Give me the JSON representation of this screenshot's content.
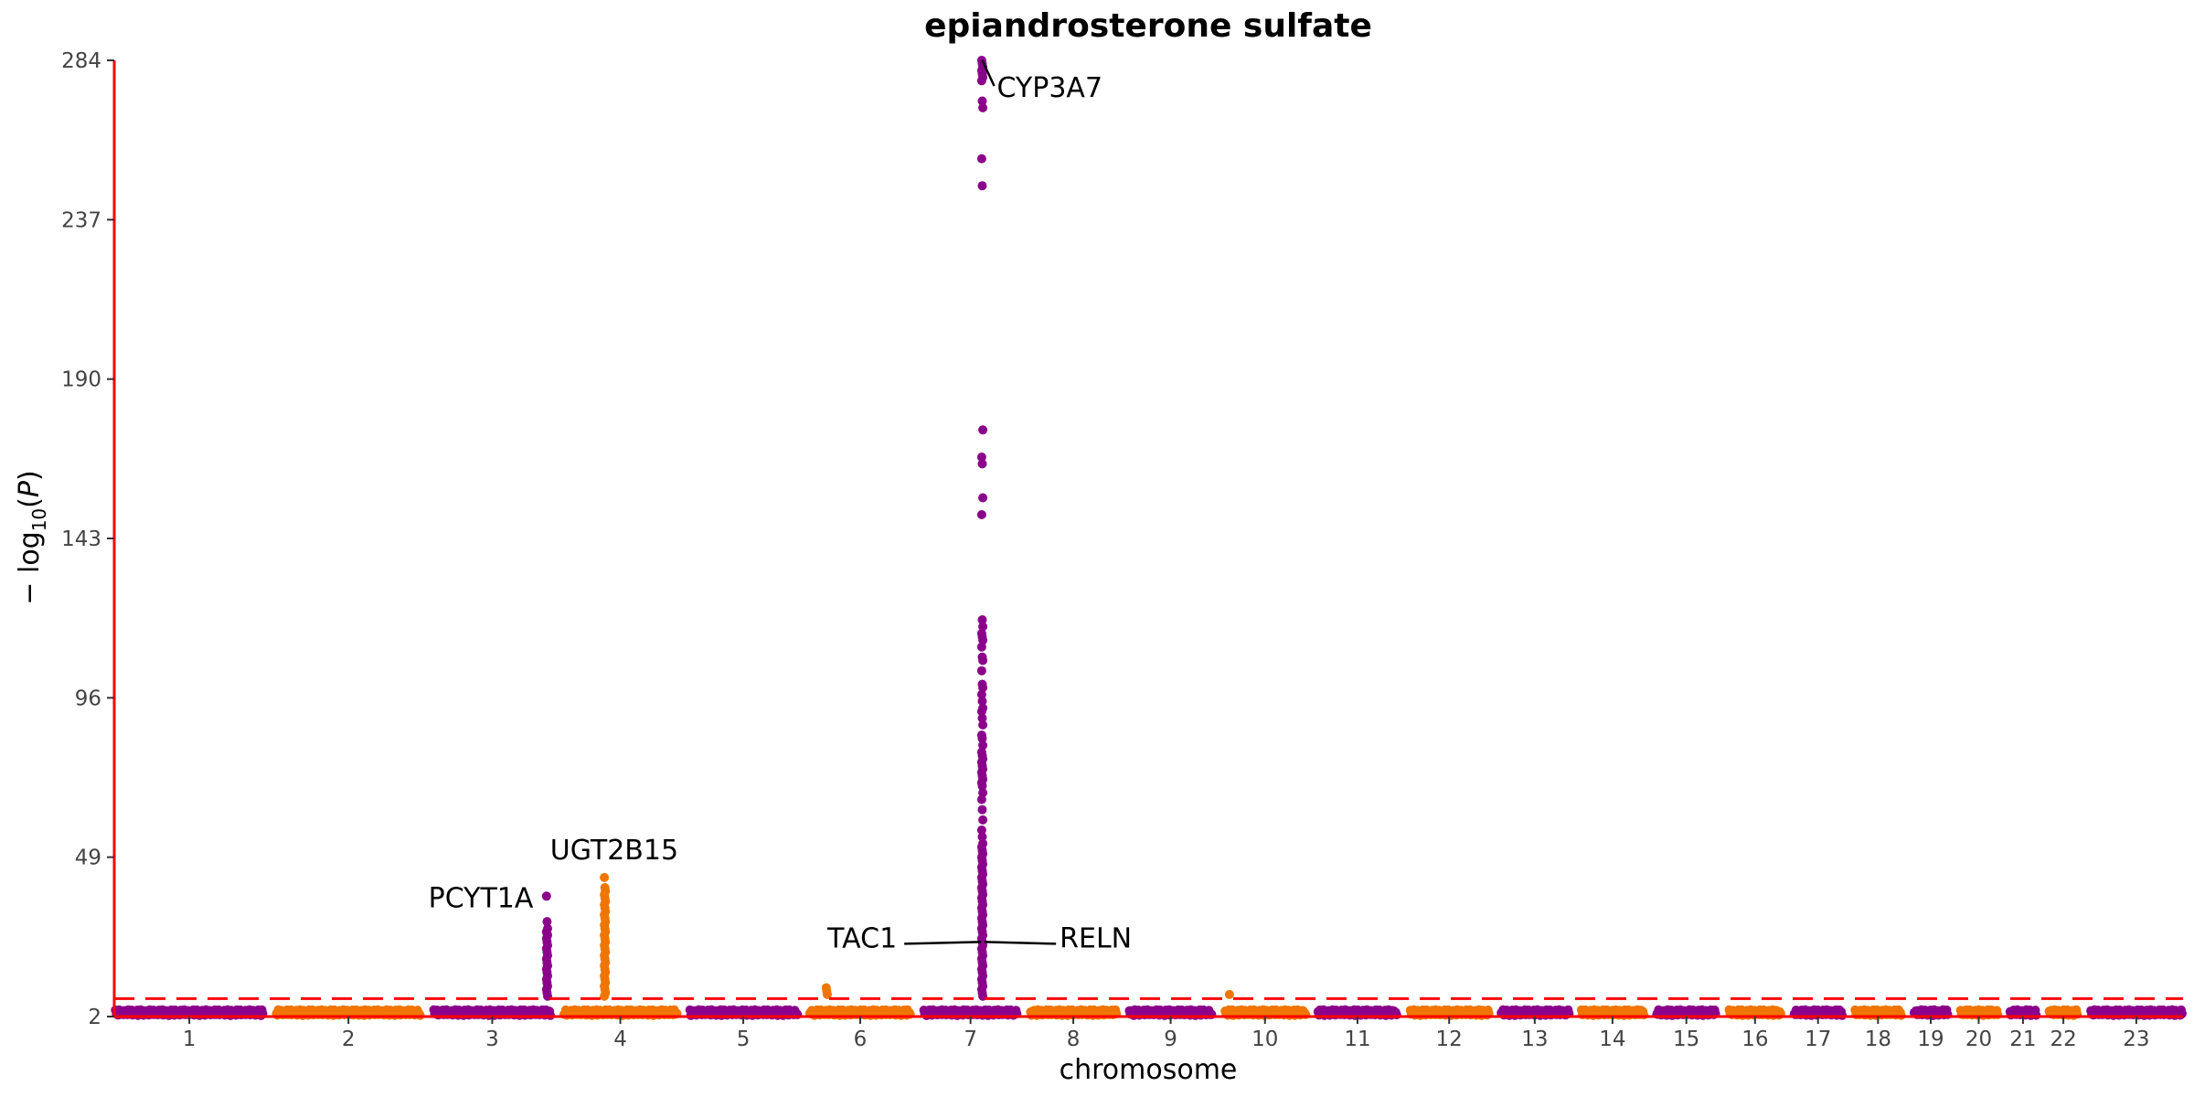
{
  "chart_data": {
    "type": "scatter",
    "title": "epiandrosterone sulfate",
    "xlabel": "chromosome",
    "ylabel": "−log10(P)",
    "y_ticks": [
      2,
      49,
      96,
      143,
      190,
      237,
      284
    ],
    "ylim": [
      2,
      284
    ],
    "significance_threshold": 7.3,
    "colors": {
      "odd": "#8B008B",
      "even": "#EE7600",
      "axis": "#FF0000",
      "threshold": "#FF0000"
    },
    "chromosomes": [
      {
        "label": "1",
        "length": 249
      },
      {
        "label": "2",
        "length": 243
      },
      {
        "label": "3",
        "length": 198
      },
      {
        "label": "4",
        "length": 191
      },
      {
        "label": "5",
        "length": 181
      },
      {
        "label": "6",
        "length": 171
      },
      {
        "label": "7",
        "length": 159
      },
      {
        "label": "8",
        "length": 146
      },
      {
        "label": "9",
        "length": 141
      },
      {
        "label": "10",
        "length": 136
      },
      {
        "label": "11",
        "length": 135
      },
      {
        "label": "12",
        "length": 133
      },
      {
        "label": "13",
        "length": 115
      },
      {
        "label": "14",
        "length": 107
      },
      {
        "label": "15",
        "length": 102
      },
      {
        "label": "16",
        "length": 90
      },
      {
        "label": "17",
        "length": 83
      },
      {
        "label": "18",
        "length": 80
      },
      {
        "label": "19",
        "length": 59
      },
      {
        "label": "20",
        "length": 64
      },
      {
        "label": "21",
        "length": 47
      },
      {
        "label": "22",
        "length": 51
      },
      {
        "label": "23",
        "length": 155
      }
    ],
    "peaks": [
      {
        "chr": "3",
        "pos": 190,
        "values": [
          37.5,
          30,
          28,
          27,
          26.5,
          26,
          25,
          24,
          23,
          22,
          21,
          20,
          19,
          18,
          17,
          16,
          15,
          14,
          13,
          12,
          11,
          10,
          9,
          8
        ]
      },
      {
        "chr": "4",
        "pos": 70,
        "values": [
          43,
          40,
          39,
          38,
          37,
          36,
          35,
          34,
          33,
          32,
          31,
          30,
          29,
          28,
          27,
          26,
          25,
          24,
          23,
          22,
          21,
          20,
          19,
          18,
          17,
          16,
          15,
          14,
          13,
          12,
          11,
          10,
          9,
          8
        ]
      },
      {
        "chr": "6",
        "pos": 30,
        "values": [
          10.5,
          9.5,
          8.5
        ]
      },
      {
        "chr": "7",
        "pos": 99,
        "values": [
          284,
          283,
          282,
          281,
          280,
          279,
          278,
          272,
          270,
          255,
          247,
          175,
          167,
          165,
          155,
          150,
          119,
          117,
          115,
          114,
          113,
          111,
          108,
          107,
          104,
          100,
          99,
          97,
          95,
          93,
          92,
          90,
          88,
          85,
          84,
          82,
          80,
          79,
          78,
          77,
          76,
          75,
          74,
          73,
          72,
          71,
          70,
          68,
          66,
          63,
          60,
          57,
          55,
          53,
          52,
          51,
          50,
          49,
          48,
          47,
          46,
          45,
          44,
          43,
          42,
          41,
          40,
          39,
          38,
          37,
          36,
          35,
          34,
          33,
          32,
          31,
          30,
          29,
          28,
          27,
          26,
          25,
          24,
          23,
          22,
          21,
          20,
          19,
          18,
          17,
          16,
          15,
          14,
          13,
          12,
          11,
          10,
          9,
          8
        ]
      },
      {
        "chr": "10",
        "pos": 10,
        "values": [
          8.5
        ]
      }
    ],
    "annotations": [
      {
        "label": "CYP3A7",
        "chr": "7",
        "pos": 99,
        "y": 284
      },
      {
        "label": "UGT2B15",
        "chr": "4",
        "pos": 70,
        "y": 43
      },
      {
        "label": "PCYT1A",
        "chr": "3",
        "pos": 190,
        "y": 37.5
      },
      {
        "label": "TAC1",
        "chr": "7",
        "pos": 97,
        "y": 24
      },
      {
        "label": "RELN",
        "chr": "7",
        "pos": 103,
        "y": 24
      }
    ]
  }
}
